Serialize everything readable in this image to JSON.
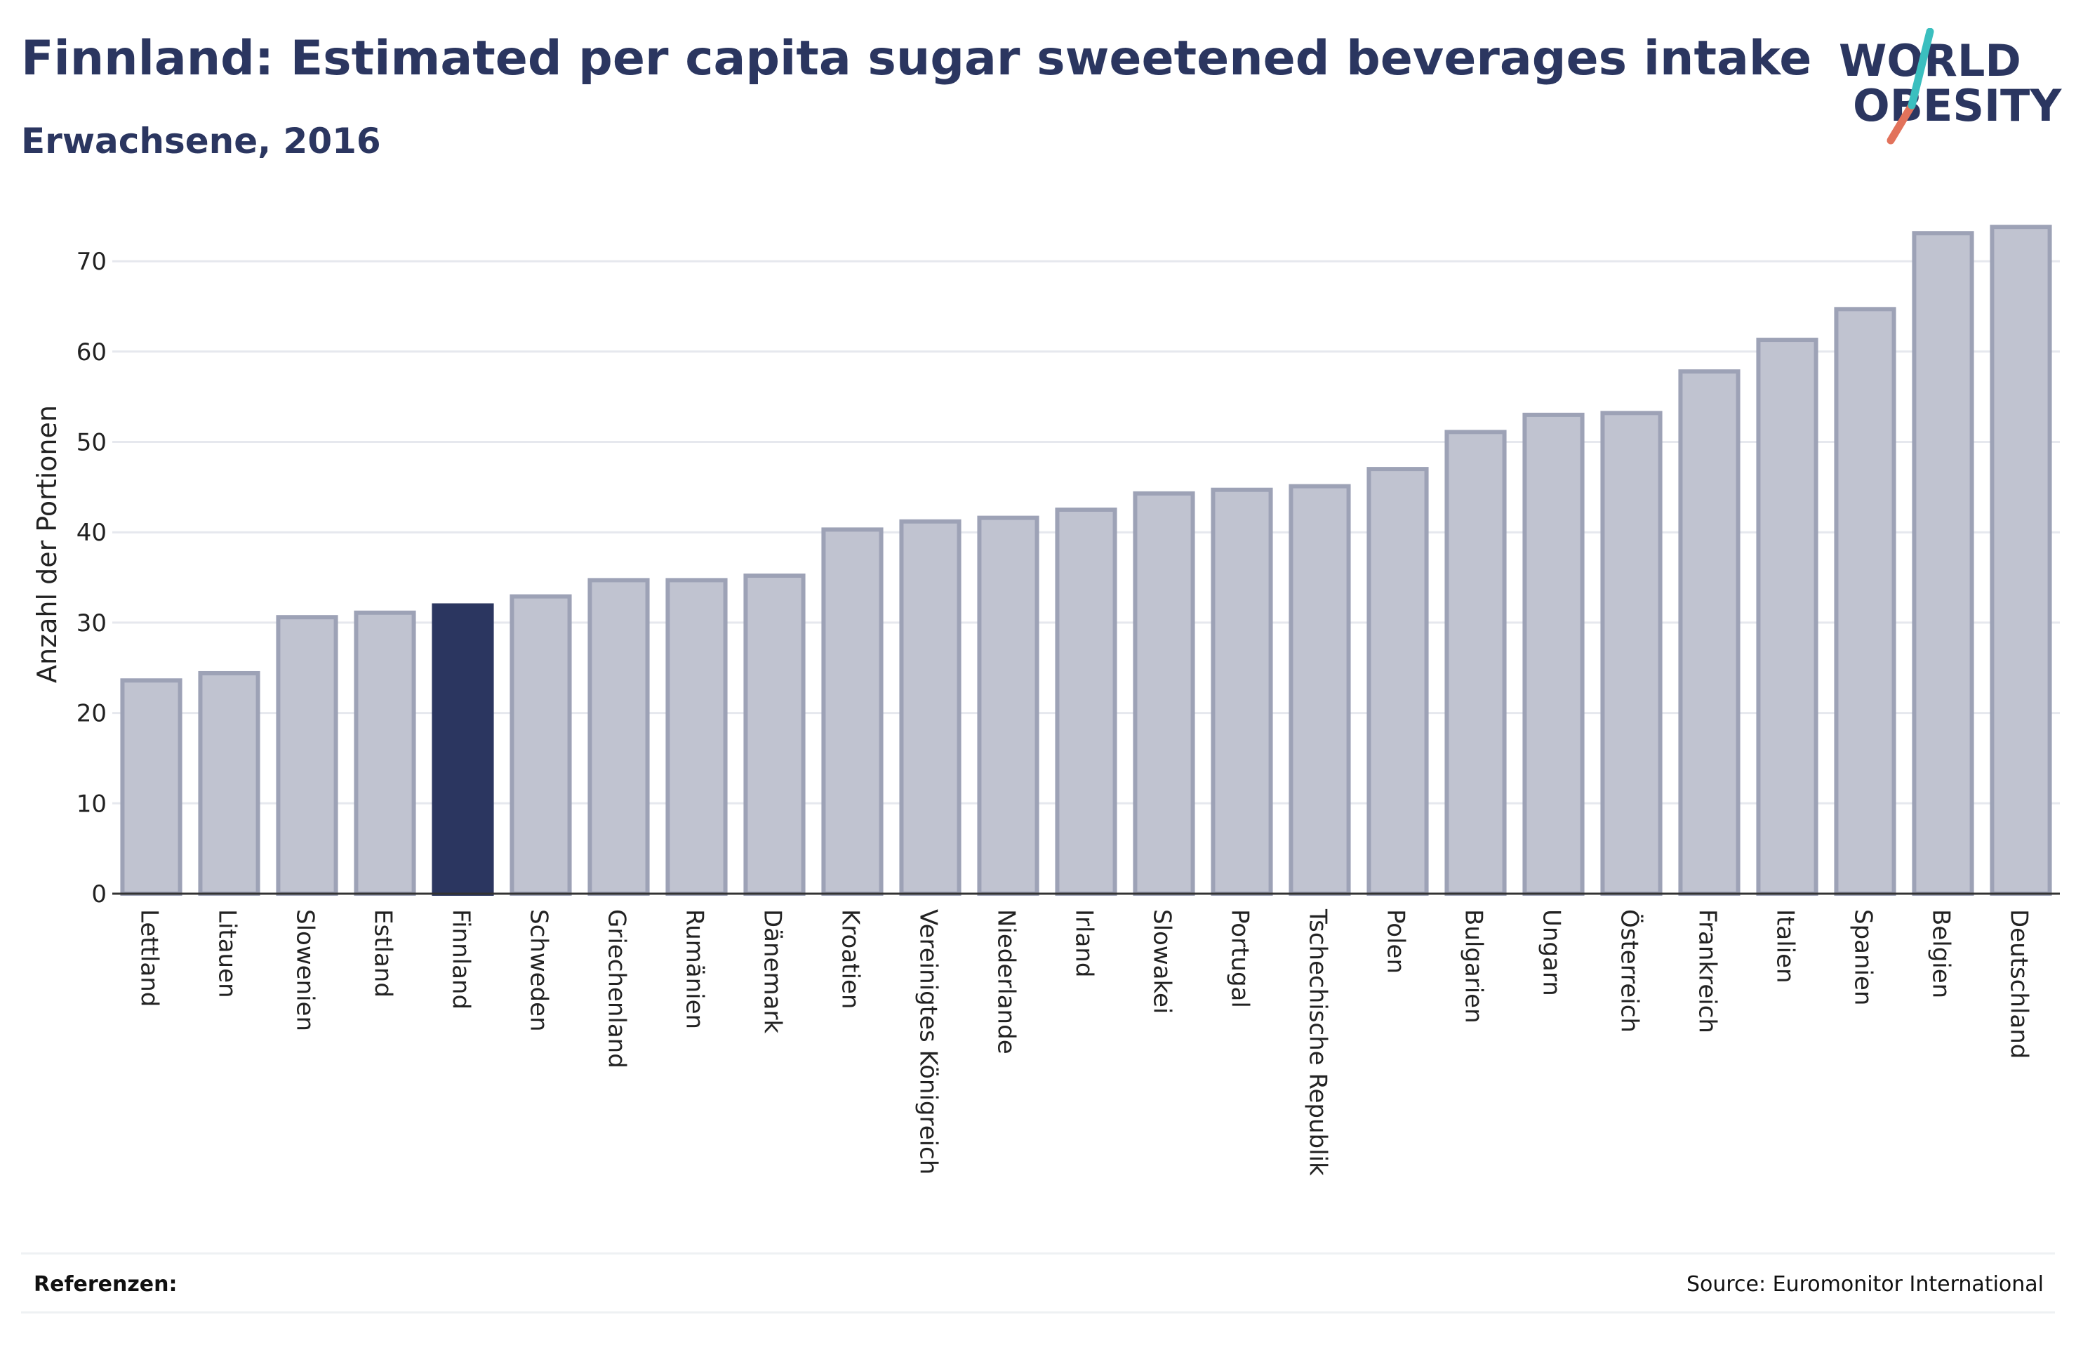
{
  "header": {
    "title": "Finnland: Estimated per capita sugar sweetened beverages intake",
    "subtitle": "Erwachsene, 2016"
  },
  "logo": {
    "line1": "WORLD",
    "line2": "OBESITY",
    "colors": {
      "text": "#2b3660",
      "slash_red": "#e2725b",
      "slash_teal": "#3bbfbf"
    }
  },
  "footer": {
    "references_label": "Referenzen:",
    "source": "Source: Euromonitor International"
  },
  "chart_data": {
    "type": "bar",
    "ylabel": "Anzahl der Portionen",
    "ylim": [
      0,
      75
    ],
    "yticks": [
      0,
      10,
      20,
      30,
      40,
      50,
      60,
      70
    ],
    "grid": true,
    "highlight": "Finnland",
    "colors": {
      "bar": "#c0c3d0",
      "bar_border": "#9da2b6",
      "highlight": "#2b3660"
    },
    "categories": [
      "Lettland",
      "Litauen",
      "Slowenien",
      "Estland",
      "Finnland",
      "Schweden",
      "Griechenland",
      "Rumänien",
      "Dänemark",
      "Kroatien",
      "Vereinigtes Königreich",
      "Niederlande",
      "Irland",
      "Slowakei",
      "Portugal",
      "Tschechische Republik",
      "Polen",
      "Bulgarien",
      "Ungarn",
      "Österreich",
      "Frankreich",
      "Italien",
      "Spanien",
      "Belgien",
      "Deutschland"
    ],
    "values": [
      23.6,
      24.4,
      30.6,
      31.1,
      31.9,
      32.9,
      34.7,
      34.7,
      35.2,
      40.3,
      41.2,
      41.6,
      42.5,
      44.3,
      44.7,
      45.1,
      47.0,
      51.1,
      53.0,
      53.2,
      57.8,
      61.3,
      64.7,
      73.1,
      73.8
    ]
  }
}
